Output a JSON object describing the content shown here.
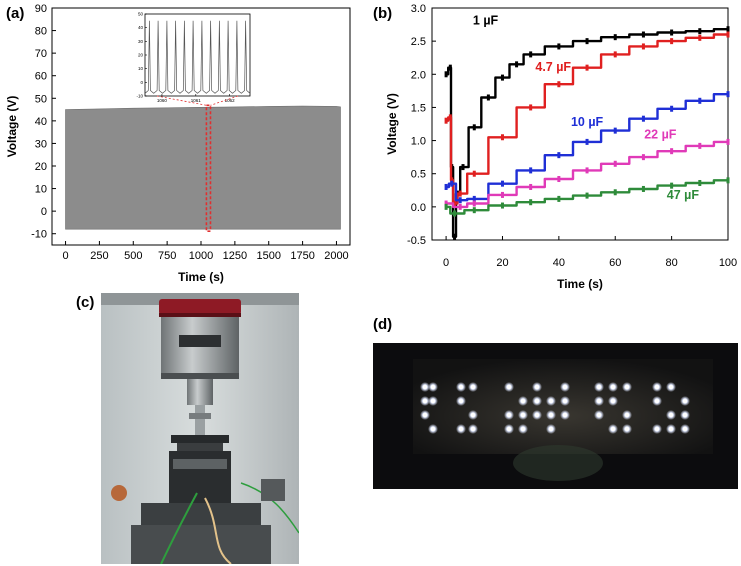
{
  "panels": {
    "a": "(a)",
    "b": "(b)",
    "c": "(c)",
    "d": "(d)"
  },
  "chart_data": [
    {
      "panel": "(a)",
      "type": "area",
      "xlabel": "Time (s)",
      "ylabel": "Voltage (V)",
      "xlim": [
        -100,
        2100
      ],
      "ylim": [
        -15,
        90
      ],
      "xticks": [
        0,
        250,
        500,
        750,
        1000,
        1250,
        1500,
        1750,
        2000
      ],
      "yticks": [
        -10,
        0,
        10,
        20,
        30,
        40,
        50,
        60,
        70,
        80,
        90
      ],
      "fill_color": "#8c8c8c",
      "band": {
        "x": [
          0,
          250,
          500,
          750,
          1000,
          1250,
          1500,
          1750,
          2000,
          2030
        ],
        "upper": [
          45,
          45.3,
          45.6,
          45.8,
          46,
          46.2,
          46.4,
          46.6,
          46.4,
          46.2
        ],
        "lower": [
          -8,
          -8,
          -8,
          -8,
          -8,
          -8,
          -8,
          -8,
          -8,
          -8
        ]
      },
      "highlight": {
        "x_range": [
          1040,
          1070
        ],
        "color": "#e03030"
      },
      "inset": {
        "xlim": [
          1059.5,
          1062.6
        ],
        "ylim": [
          -10,
          50
        ],
        "xticks": [
          1060,
          1061,
          1062
        ],
        "yticks": [
          -10,
          0,
          10,
          20,
          30,
          40,
          50
        ],
        "peak_count": 12,
        "peak_value": 45,
        "baseline": -8
      }
    },
    {
      "panel": "(b)",
      "type": "line",
      "xlabel": "Time (s)",
      "ylabel": "Voltage (V)",
      "xlim": [
        -5,
        100
      ],
      "ylim": [
        -0.5,
        3.0
      ],
      "xticks": [
        0,
        20,
        40,
        60,
        80,
        100
      ],
      "yticks": [
        -0.5,
        0.0,
        0.5,
        1.0,
        1.5,
        2.0,
        2.5,
        3.0
      ],
      "series": [
        {
          "name": "1 µF",
          "color": "#000000",
          "x": [
            0,
            1.5,
            2,
            3,
            4,
            6,
            10,
            15,
            20,
            25,
            30,
            40,
            50,
            60,
            70,
            80,
            90,
            100
          ],
          "y": [
            2.0,
            2.1,
            0.6,
            -0.45,
            0.2,
            0.6,
            1.2,
            1.65,
            1.95,
            2.15,
            2.3,
            2.42,
            2.5,
            2.56,
            2.6,
            2.63,
            2.65,
            2.68
          ]
        },
        {
          "name": "4.7 µF",
          "color": "#e02020",
          "x": [
            0,
            1.5,
            2,
            3,
            5,
            10,
            20,
            30,
            40,
            50,
            60,
            70,
            80,
            90,
            100
          ],
          "y": [
            1.3,
            1.35,
            0.4,
            0.05,
            0.2,
            0.5,
            1.05,
            1.5,
            1.85,
            2.1,
            2.3,
            2.42,
            2.5,
            2.55,
            2.6
          ]
        },
        {
          "name": "10 µF",
          "color": "#1f2fd6",
          "x": [
            0,
            2,
            5,
            10,
            20,
            30,
            40,
            50,
            60,
            70,
            80,
            90,
            100
          ],
          "y": [
            0.3,
            0.35,
            0.1,
            0.12,
            0.35,
            0.55,
            0.78,
            0.98,
            1.15,
            1.33,
            1.48,
            1.6,
            1.7
          ]
        },
        {
          "name": "22 µF",
          "color": "#e03ab8",
          "x": [
            0,
            5,
            10,
            20,
            30,
            40,
            50,
            60,
            70,
            80,
            90,
            100
          ],
          "y": [
            0.05,
            0.0,
            0.05,
            0.18,
            0.3,
            0.42,
            0.55,
            0.65,
            0.75,
            0.84,
            0.92,
            0.98
          ]
        },
        {
          "name": "47 µF",
          "color": "#2e8b3a",
          "x": [
            0,
            3,
            10,
            20,
            30,
            40,
            50,
            60,
            70,
            80,
            90,
            100
          ],
          "y": [
            0.0,
            -0.1,
            -0.05,
            0.02,
            0.07,
            0.12,
            0.17,
            0.22,
            0.27,
            0.32,
            0.36,
            0.4
          ]
        }
      ]
    }
  ]
}
